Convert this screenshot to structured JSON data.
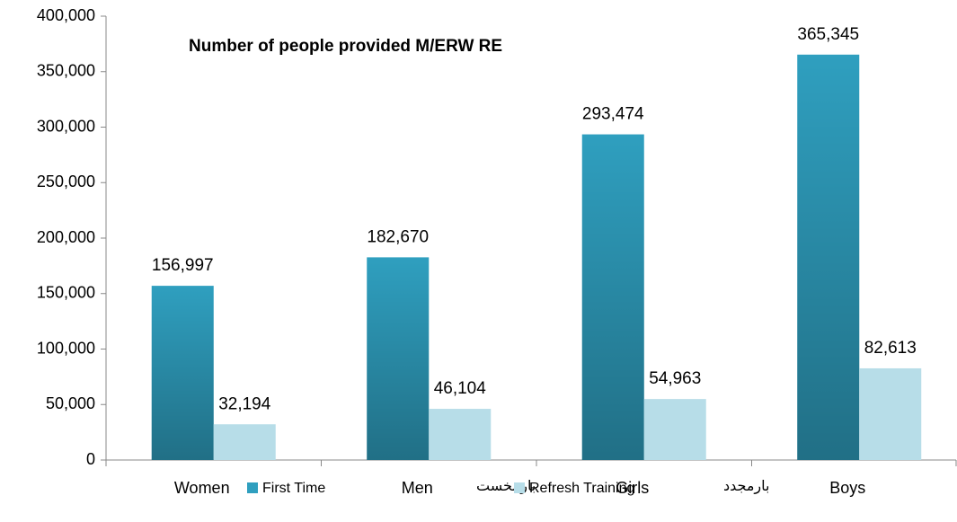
{
  "chart_data": {
    "type": "bar",
    "title": "Number of people provided M/ERW RE",
    "categories": [
      "Women",
      "Men",
      "Girls",
      "Boys"
    ],
    "series": [
      {
        "name": "First Time",
        "name_fa": "بار نخست",
        "color": "#2f9fbf",
        "gradient": true,
        "values": [
          156997,
          182670,
          293474,
          365345
        ],
        "value_labels": [
          "156,997",
          "182,670",
          "293,474",
          "365,345"
        ]
      },
      {
        "name": "Refresh Training",
        "name_fa": "بارمجدد",
        "color": "#b7dde8",
        "gradient": false,
        "values": [
          32194,
          46104,
          54963,
          82613
        ],
        "value_labels": [
          "32,194",
          "46,104",
          "54,963",
          "82,613"
        ]
      }
    ],
    "ylim": [
      0,
      400000
    ],
    "yticks": [
      0,
      {
        "value": 50000,
        "label": "50,000"
      },
      {
        "value": 100000,
        "label": "100,000"
      },
      {
        "value": 150000,
        "label": "150,000"
      },
      {
        "value": 200000,
        "label": "200,000"
      },
      {
        "value": 250000,
        "label": "250,000"
      },
      {
        "value": 300000,
        "label": "300,000"
      },
      {
        "value": 350000,
        "label": "350,000"
      },
      {
        "value": 400000,
        "label": "400,000"
      }
    ],
    "grid": false,
    "legend": "bottom"
  }
}
